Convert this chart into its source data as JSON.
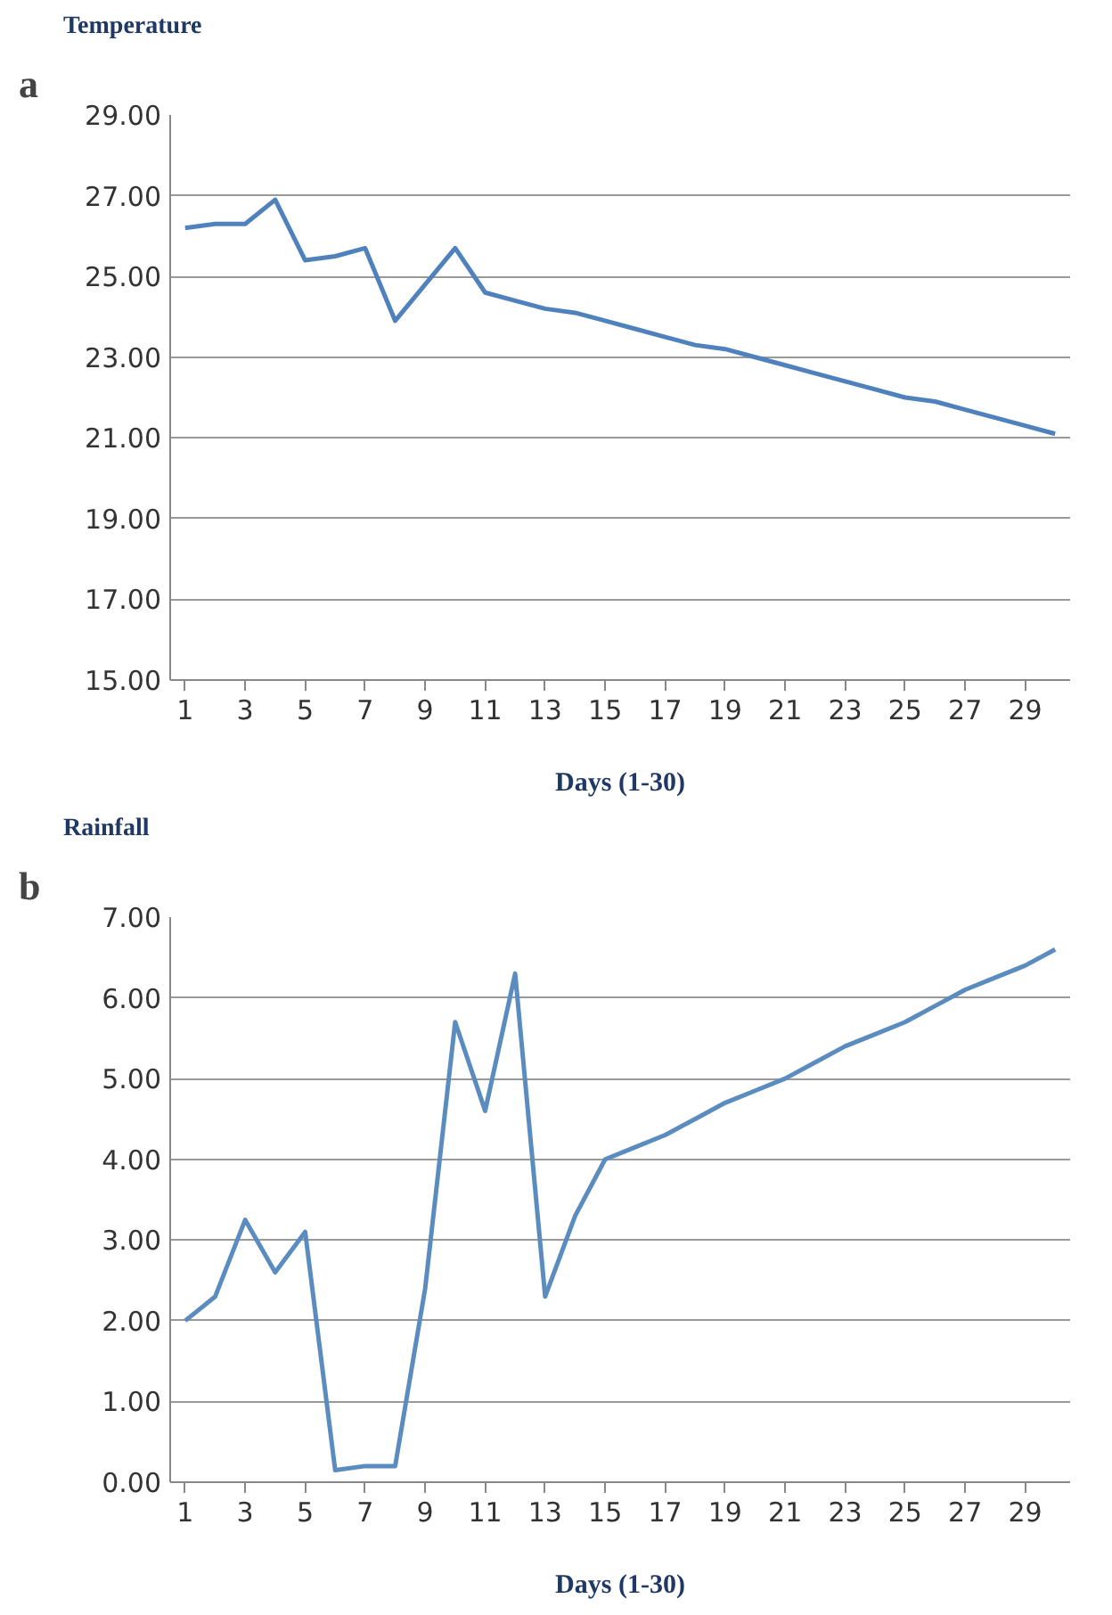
{
  "chart_data": [
    {
      "type": "line",
      "title": "Temperature",
      "xlabel": "Days (1-30)",
      "annotations": [
        "a"
      ],
      "x": [
        1,
        2,
        3,
        4,
        5,
        6,
        7,
        8,
        9,
        10,
        11,
        12,
        13,
        14,
        15,
        16,
        17,
        18,
        19,
        20,
        21,
        22,
        23,
        24,
        25,
        26,
        27,
        28,
        29,
        30
      ],
      "series": [
        {
          "color": "#4f81bd",
          "values": [
            26.2,
            26.3,
            26.3,
            26.9,
            25.4,
            25.5,
            25.7,
            23.9,
            24.8,
            25.7,
            24.6,
            24.4,
            24.2,
            24.1,
            23.9,
            23.7,
            23.5,
            23.3,
            23.2,
            23.0,
            22.8,
            22.6,
            22.4,
            22.2,
            22.0,
            21.9,
            21.7,
            21.5,
            21.3,
            21.1
          ]
        }
      ],
      "xlim": [
        0.5,
        30.5
      ],
      "xticks": [
        1,
        3,
        5,
        7,
        9,
        11,
        13,
        15,
        17,
        19,
        21,
        23,
        25,
        27,
        29
      ],
      "ylim": [
        15,
        29
      ],
      "yticks": [
        {
          "value": 15,
          "label": "15.00"
        },
        {
          "value": 17,
          "label": "17.00"
        },
        {
          "value": 19,
          "label": "19.00"
        },
        {
          "value": 21,
          "label": "21.00"
        },
        {
          "value": 23,
          "label": "23.00"
        },
        {
          "value": 25,
          "label": "25.00"
        },
        {
          "value": 27,
          "label": "27.00"
        },
        {
          "value": 29,
          "label": "29.00"
        }
      ],
      "grid": "y",
      "marker": "none",
      "line_style": "solid"
    },
    {
      "type": "line",
      "title": "Rainfall",
      "xlabel": "Days (1-30)",
      "annotations": [
        "b"
      ],
      "x": [
        1,
        2,
        3,
        4,
        5,
        6,
        7,
        8,
        9,
        10,
        11,
        12,
        13,
        14,
        15,
        16,
        17,
        18,
        19,
        20,
        21,
        22,
        23,
        24,
        25,
        26,
        27,
        28,
        29,
        30
      ],
      "series": [
        {
          "color": "#5b8cbf",
          "values": [
            2.0,
            2.3,
            3.25,
            2.6,
            3.1,
            0.15,
            0.2,
            0.2,
            2.4,
            5.7,
            4.6,
            6.3,
            2.3,
            3.3,
            4.0,
            4.15,
            4.3,
            4.5,
            4.7,
            4.85,
            5.0,
            5.2,
            5.4,
            5.55,
            5.7,
            5.9,
            6.1,
            6.25,
            6.4,
            6.6
          ]
        }
      ],
      "xlim": [
        0.5,
        30.5
      ],
      "xticks": [
        1,
        3,
        5,
        7,
        9,
        11,
        13,
        15,
        17,
        19,
        21,
        23,
        25,
        27,
        29
      ],
      "ylim": [
        0,
        7
      ],
      "yticks": [
        {
          "value": 0,
          "label": "0.00"
        },
        {
          "value": 1,
          "label": "1.00"
        },
        {
          "value": 2,
          "label": "2.00"
        },
        {
          "value": 3,
          "label": "3.00"
        },
        {
          "value": 4,
          "label": "4.00"
        },
        {
          "value": 5,
          "label": "5.00"
        },
        {
          "value": 6,
          "label": "6.00"
        },
        {
          "value": 7,
          "label": "7.00"
        }
      ],
      "grid": "y",
      "marker": "none",
      "line_style": "solid"
    }
  ]
}
